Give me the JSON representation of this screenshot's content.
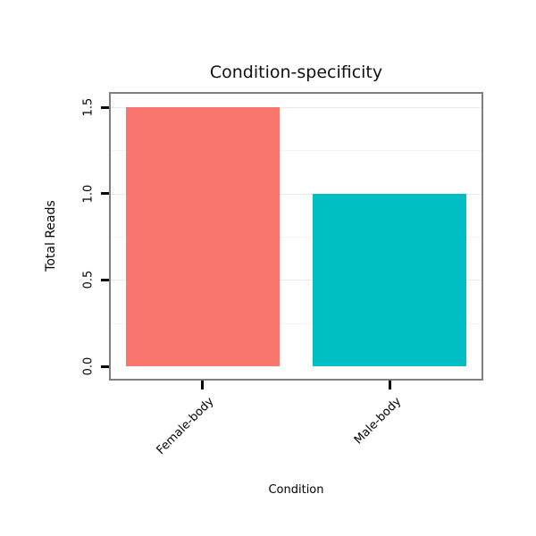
{
  "chart_data": {
    "type": "bar",
    "title": "Condition-specificity",
    "xlabel": "Condition",
    "ylabel": "Total Reads",
    "categories": [
      "Female-body",
      "Male-body"
    ],
    "values": [
      1.5,
      1.0
    ],
    "bar_colors": [
      "#F8766D",
      "#00BFC4"
    ],
    "ylim": [
      0,
      1.5
    ],
    "yticks": [
      0.0,
      0.5,
      1.0,
      1.5
    ],
    "ytick_labels": [
      "0.0",
      "0.5",
      "1.0",
      "1.5"
    ],
    "legend": "none",
    "grid": "horizontal gridlines every 0.25, light gray",
    "panel_border_color": "#7f7f7f",
    "major_grid_color": "#e9e9e9",
    "minor_grid_color": "#f4f4f4",
    "text_color": "#000000"
  }
}
